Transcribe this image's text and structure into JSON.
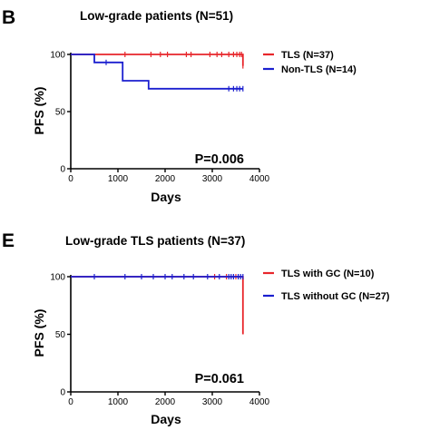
{
  "chart_data": [
    {
      "type": "line",
      "panel": "B",
      "title": "Low-grade patients (N=51)",
      "xlabel": "Days",
      "ylabel": "PFS (%)",
      "xlim": [
        0,
        4000
      ],
      "ylim": [
        0,
        100
      ],
      "xticks": [
        0,
        1000,
        2000,
        3000,
        4000
      ],
      "yticks": [
        0,
        50,
        100
      ],
      "legend_position": "right",
      "annotation": "P=0.006",
      "series": [
        {
          "name": "TLS (N=37)",
          "color": "#e8262b",
          "steps": [
            [
              0,
              100
            ],
            [
              3650,
              100
            ],
            [
              3650,
              90
            ]
          ],
          "censored": [
            [
              1150,
              100
            ],
            [
              1700,
              100
            ],
            [
              1900,
              100
            ],
            [
              2050,
              100
            ],
            [
              2450,
              100
            ],
            [
              2550,
              100
            ],
            [
              2950,
              100
            ],
            [
              3100,
              100
            ],
            [
              3200,
              100
            ],
            [
              3350,
              100
            ],
            [
              3450,
              100
            ],
            [
              3520,
              100
            ],
            [
              3580,
              100
            ],
            [
              3620,
              100
            ],
            [
              3650,
              90
            ]
          ]
        },
        {
          "name": "Non-TLS (N=14)",
          "color": "#1b1fcf",
          "steps": [
            [
              0,
              100
            ],
            [
              500,
              100
            ],
            [
              500,
              93
            ],
            [
              1100,
              93
            ],
            [
              1100,
              77
            ],
            [
              1650,
              77
            ],
            [
              1650,
              70
            ],
            [
              3650,
              70
            ]
          ],
          "censored": [
            [
              750,
              93
            ],
            [
              3350,
              70
            ],
            [
              3450,
              70
            ],
            [
              3520,
              70
            ],
            [
              3580,
              70
            ],
            [
              3650,
              70
            ]
          ]
        }
      ]
    },
    {
      "type": "line",
      "panel": "E",
      "title": "Low-grade TLS patients (N=37)",
      "xlabel": "Days",
      "ylabel": "PFS (%)",
      "xlim": [
        0,
        4000
      ],
      "ylim": [
        0,
        100
      ],
      "xticks": [
        0,
        1000,
        2000,
        3000,
        4000
      ],
      "yticks": [
        0,
        50,
        100
      ],
      "legend_position": "right",
      "annotation": "P=0.061",
      "series": [
        {
          "name": "TLS with GC (N=10)",
          "color": "#e8262b",
          "steps": [
            [
              0,
              100
            ],
            [
              3650,
              100
            ],
            [
              3650,
              50
            ]
          ],
          "censored": [
            [
              3050,
              100
            ],
            [
              3300,
              100
            ],
            [
              3500,
              100
            ]
          ]
        },
        {
          "name": "TLS without GC (N=27)",
          "color": "#1b1fcf",
          "steps": [
            [
              0,
              100
            ],
            [
              3650,
              100
            ]
          ],
          "censored": [
            [
              500,
              100
            ],
            [
              1150,
              100
            ],
            [
              1500,
              100
            ],
            [
              1750,
              100
            ],
            [
              2000,
              100
            ],
            [
              2150,
              100
            ],
            [
              2400,
              100
            ],
            [
              2600,
              100
            ],
            [
              2900,
              100
            ],
            [
              3150,
              100
            ],
            [
              3350,
              100
            ],
            [
              3400,
              100
            ],
            [
              3450,
              100
            ],
            [
              3550,
              100
            ],
            [
              3600,
              100
            ],
            [
              3650,
              100
            ]
          ]
        }
      ]
    }
  ]
}
